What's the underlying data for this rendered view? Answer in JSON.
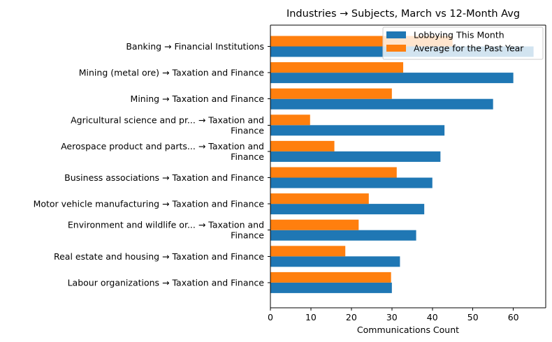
{
  "chart_data": {
    "type": "bar",
    "orientation": "horizontal",
    "title": "Industries → Subjects, March vs 12-Month Avg",
    "xlabel": "Communications Count",
    "ylabel": "",
    "xlim": [
      0,
      68
    ],
    "xticks": [
      0,
      10,
      20,
      30,
      40,
      50,
      60
    ],
    "grid": false,
    "legend_position": "upper-right",
    "categories": [
      [
        "Banking → Financial Institutions"
      ],
      [
        "Mining (metal ore) → Taxation and Finance"
      ],
      [
        "Mining → Taxation and Finance"
      ],
      [
        "Agricultural science and pr... → Taxation and",
        "Finance"
      ],
      [
        "Aerospace product and parts... → Taxation and",
        "Finance"
      ],
      [
        "Business associations → Taxation and Finance"
      ],
      [
        "Motor vehicle manufacturing → Taxation and Finance"
      ],
      [
        "Environment and wildlife or... → Taxation and",
        "Finance"
      ],
      [
        "Real estate and housing → Taxation and Finance"
      ],
      [
        "Labour organizations → Taxation and Finance"
      ]
    ],
    "series": [
      {
        "name": "Lobbying This Month",
        "color": "#1f77b4",
        "values": [
          65,
          60,
          55,
          43,
          42,
          40,
          38,
          36,
          32,
          30
        ]
      },
      {
        "name": "Average for the Past Year",
        "color": "#ff7f0e",
        "values": [
          45,
          32.8,
          30,
          9.8,
          15.8,
          31.2,
          24.3,
          21.8,
          18.5,
          29.8
        ]
      }
    ]
  }
}
